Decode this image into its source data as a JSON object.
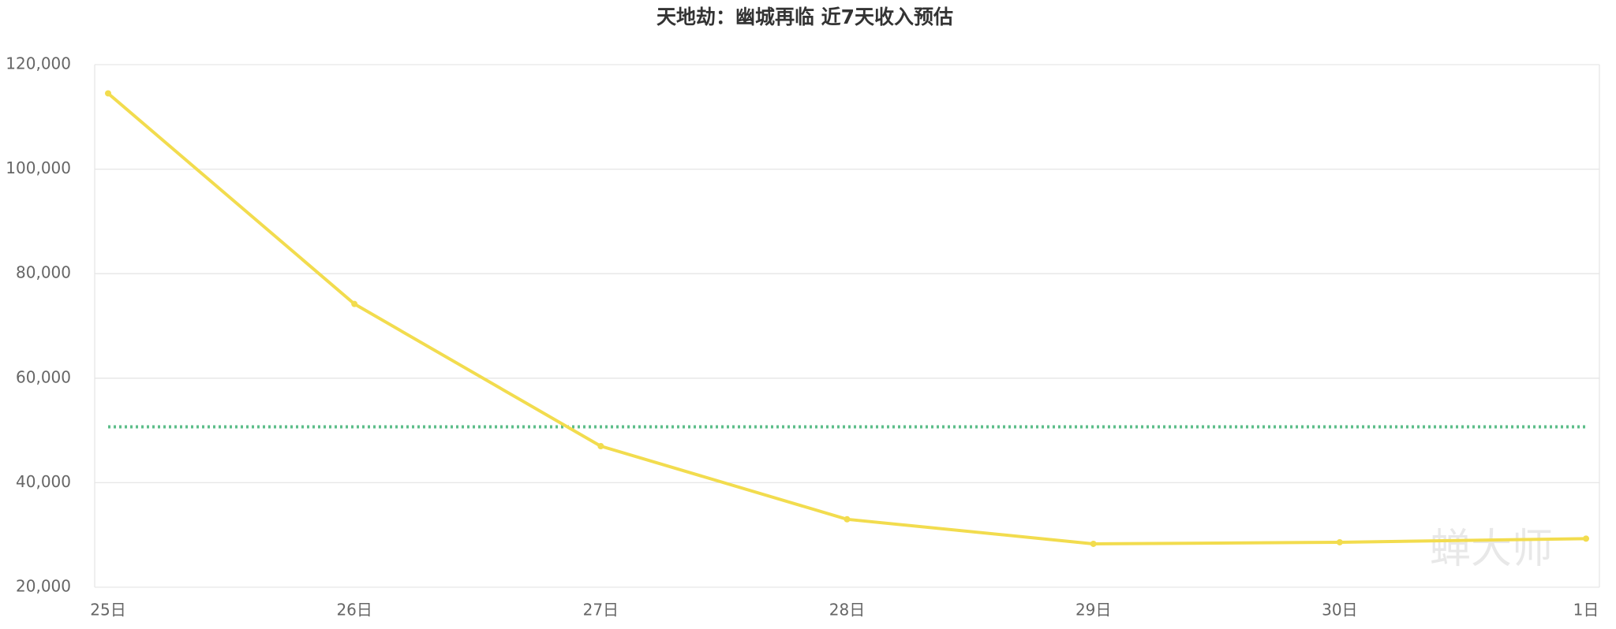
{
  "chart_data": {
    "type": "line",
    "title": "天地劫：幽城再临 近7天收入预估",
    "categories": [
      "25日",
      "26日",
      "27日",
      "28日",
      "29日",
      "30日",
      "1日"
    ],
    "series": [
      {
        "color": "#f2dc4e",
        "values": [
          114500,
          74200,
          47000,
          33000,
          28300,
          28600,
          29300
        ]
      }
    ],
    "reference_line": {
      "value": 50700,
      "color": "#5dbe8a"
    },
    "ylim": [
      20000,
      120000
    ],
    "yticks": [
      {
        "value": 20000,
        "label": "20,000"
      },
      {
        "value": 40000,
        "label": "40,000"
      },
      {
        "value": 60000,
        "label": "60,000"
      },
      {
        "value": 80000,
        "label": "80,000"
      },
      {
        "value": 100000,
        "label": "100,000"
      },
      {
        "value": 120000,
        "label": "120,000"
      }
    ],
    "grid": true,
    "watermark": "蝉大师"
  }
}
